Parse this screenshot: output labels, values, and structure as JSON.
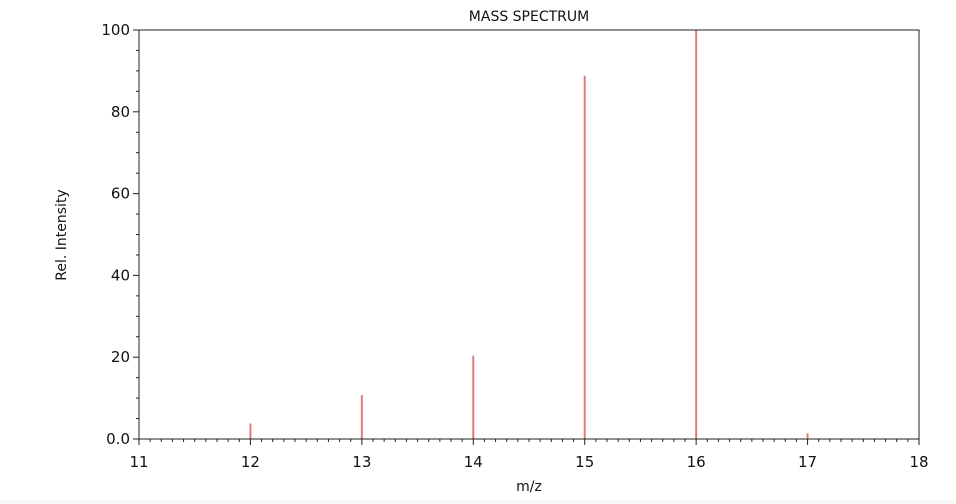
{
  "chart_data": {
    "type": "bar",
    "title": "MASS SPECTRUM",
    "xlabel": "m/z",
    "ylabel": "Rel. Intensity",
    "xlim": [
      11,
      18
    ],
    "ylim": [
      0,
      100
    ],
    "x_ticks": [
      11,
      12,
      13,
      14,
      15,
      16,
      17,
      18
    ],
    "x_tick_labels": [
      "11",
      "12",
      "13",
      "14",
      "15",
      "16",
      "17",
      "18"
    ],
    "y_ticks": [
      0,
      20,
      40,
      60,
      80,
      100
    ],
    "y_tick_labels": [
      "0.0",
      "20",
      "40",
      "60",
      "80",
      "100"
    ],
    "x": [
      12,
      13,
      14,
      15,
      16,
      17
    ],
    "values": [
      3.8,
      10.7,
      20.4,
      88.8,
      100,
      1.4
    ],
    "bar_color": "#e07b7b",
    "grid": false,
    "legend": "none"
  }
}
